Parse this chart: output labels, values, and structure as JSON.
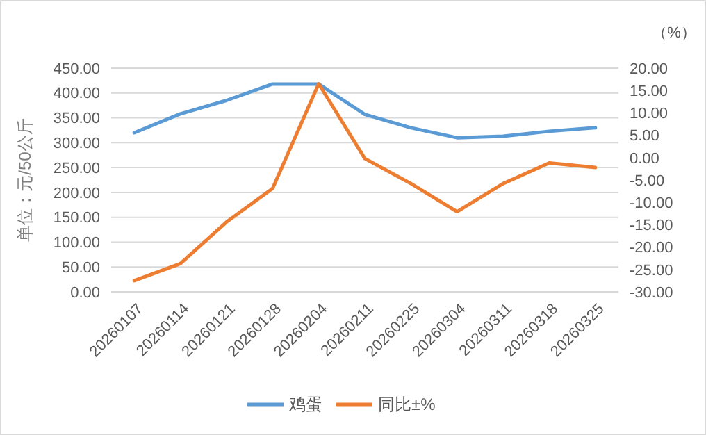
{
  "chart_data": {
    "type": "line",
    "ylabel": "单位：元/50公斤",
    "y2label": "（%）",
    "categories": [
      "20260107",
      "20260114",
      "20260121",
      "20260128",
      "20260204",
      "20260211",
      "20260225",
      "20260304",
      "20260311",
      "20260318",
      "20260325"
    ],
    "series": [
      {
        "name": "鸡蛋",
        "color": "#5b9bd5",
        "values": [
          320,
          358,
          385,
          418,
          418,
          357,
          330,
          310,
          313,
          323,
          330
        ]
      },
      {
        "name": "同比±%",
        "color": "#ed7d31",
        "axis": "y2",
        "values": [
          -27.5,
          -23.7,
          -14.4,
          -6.9,
          16.5,
          -0.2,
          -5.8,
          -12.1,
          -5.8,
          -1.2,
          -2.2
        ]
      }
    ],
    "ylim": [
      0,
      450
    ],
    "yticks": [
      {
        "value": 0,
        "label": "0.00"
      },
      {
        "value": 50,
        "label": "50.00"
      },
      {
        "value": 100,
        "label": "100.00"
      },
      {
        "value": 150,
        "label": "150.00"
      },
      {
        "value": 200,
        "label": "200.00"
      },
      {
        "value": 250,
        "label": "250.00"
      },
      {
        "value": 300,
        "label": "300.00"
      },
      {
        "value": 350,
        "label": "350.00"
      },
      {
        "value": 400,
        "label": "400.00"
      },
      {
        "value": 450,
        "label": "450.00"
      }
    ],
    "y2lim": [
      -30,
      20
    ],
    "y2ticks": [
      {
        "value": -30,
        "label": "-30.00"
      },
      {
        "value": -25,
        "label": "-25.00"
      },
      {
        "value": -20,
        "label": "-20.00"
      },
      {
        "value": -15,
        "label": "-15.00"
      },
      {
        "value": -10,
        "label": "-10.00"
      },
      {
        "value": -5,
        "label": "-5.00"
      },
      {
        "value": 0,
        "label": "0.00"
      },
      {
        "value": 5,
        "label": "5.00"
      },
      {
        "value": 10,
        "label": "10.00"
      },
      {
        "value": 15,
        "label": "15.00"
      },
      {
        "value": 20,
        "label": "20.00"
      }
    ],
    "grid": "y",
    "legend": "bottom",
    "marker": "none",
    "line_style": "solid"
  }
}
